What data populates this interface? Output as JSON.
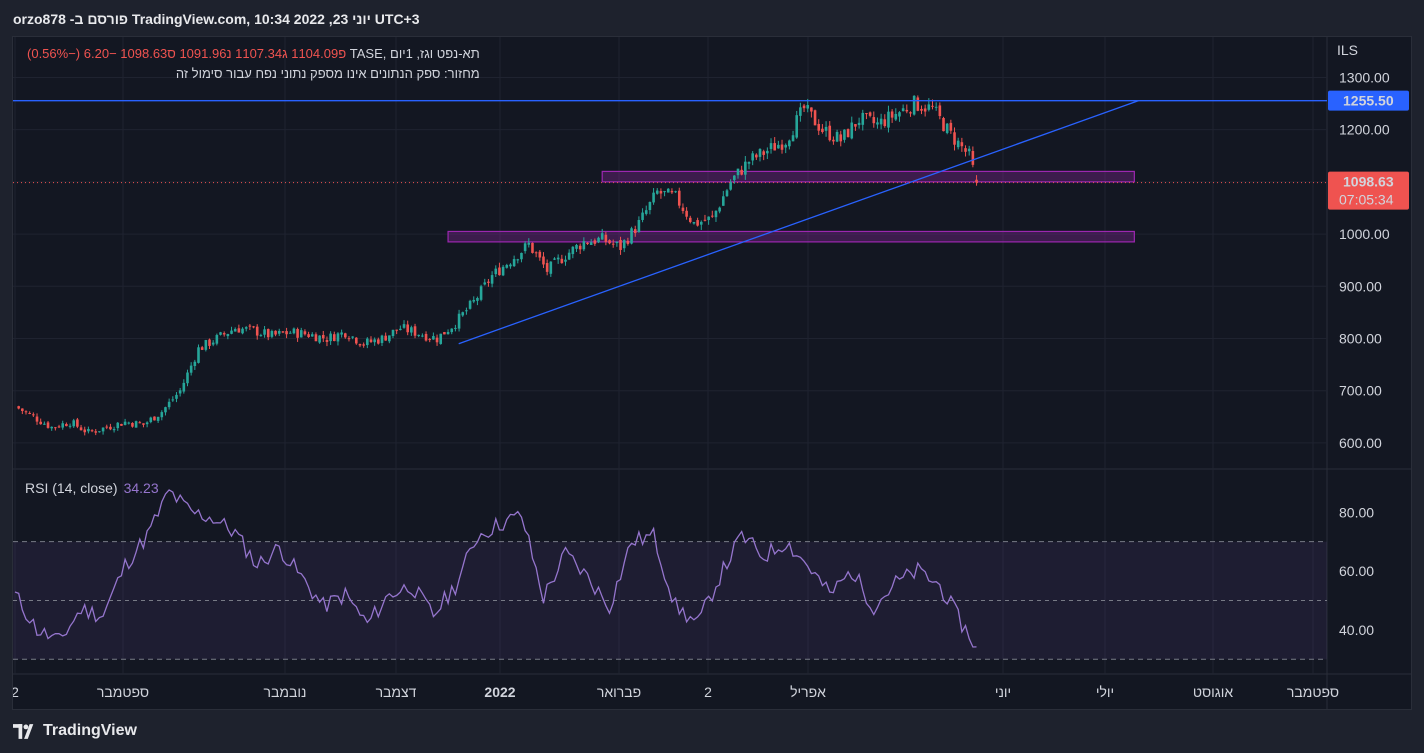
{
  "header": {
    "publisher": "orzo878 -פורסם ב TradingView.com, 10:34 2022 ,23 יוני UTC+3"
  },
  "legend": {
    "symbol": "תא-נפט וגז, 1יום ,TASE",
    "ohlc": "פ1104.09 ג1107.34 נ1091.96 ס1098.63 −6.20 (−0.56%)",
    "notice": "מחזור: ספק הנתונים אינו מספק נתוני נפח עבור סימול זה"
  },
  "rsi": {
    "label": "RSI (14, close)",
    "value": "34.23"
  },
  "price_axis": {
    "currency": "ILS",
    "h_line_label": "1255.50",
    "last_price": "1098.63",
    "countdown": "07:05:34"
  },
  "footer": {
    "brand": "TradingView"
  },
  "colors": {
    "up": "#26a69a",
    "down": "#ef5350",
    "rsi_line": "#9575cd",
    "trend_line": "#2962ff",
    "zone": "#9c27b0"
  },
  "chart_data": [
    {
      "type": "candlestick",
      "ylim": [
        550,
        1320
      ],
      "y_ticks": [
        "600.00",
        "700.00",
        "800.00",
        "900.00",
        "1000.00",
        "1100.00",
        "1200.00",
        "1300.00"
      ],
      "x_ticks": [
        "2",
        "ספטמבר",
        "נובמבר",
        "דצמבר",
        "2022",
        "פברואר",
        "2",
        "אפריל",
        "יוני",
        "יולי",
        "אוגוסט",
        "ספטמבר"
      ],
      "close_path": [
        [
          0,
          670
        ],
        [
          5,
          650
        ],
        [
          10,
          630
        ],
        [
          15,
          640
        ],
        [
          20,
          620
        ],
        [
          25,
          630
        ],
        [
          30,
          640
        ],
        [
          35,
          635
        ],
        [
          40,
          660
        ],
        [
          45,
          700
        ],
        [
          50,
          780
        ],
        [
          55,
          800
        ],
        [
          60,
          820
        ],
        [
          65,
          815
        ],
        [
          70,
          805
        ],
        [
          75,
          812
        ],
        [
          80,
          808
        ],
        [
          85,
          800
        ],
        [
          90,
          812
        ],
        [
          95,
          790
        ],
        [
          100,
          800
        ],
        [
          105,
          820
        ],
        [
          110,
          810
        ],
        [
          115,
          800
        ],
        [
          120,
          830
        ],
        [
          125,
          870
        ],
        [
          130,
          920
        ],
        [
          135,
          950
        ],
        [
          140,
          980
        ],
        [
          145,
          930
        ],
        [
          150,
          960
        ],
        [
          155,
          985
        ],
        [
          160,
          990
        ],
        [
          165,
          975
        ],
        [
          170,
          1020
        ],
        [
          175,
          1080
        ],
        [
          180,
          1070
        ],
        [
          185,
          1020
        ],
        [
          190,
          1030
        ],
        [
          195,
          1100
        ],
        [
          200,
          1140
        ],
        [
          205,
          1160
        ],
        [
          210,
          1180
        ],
        [
          215,
          1240
        ],
        [
          220,
          1200
        ],
        [
          225,
          1180
        ],
        [
          230,
          1220
        ],
        [
          235,
          1210
        ],
        [
          240,
          1230
        ],
        [
          245,
          1250
        ],
        [
          250,
          1240
        ],
        [
          255,
          1190
        ],
        [
          260,
          1150
        ],
        [
          262,
          1098.63
        ]
      ],
      "horizontal_line": 1255.5,
      "trend_line": {
        "from": [
          110,
          790
        ],
        "to": [
          283,
          1255.5
        ]
      },
      "zones": [
        {
          "from_day": 160,
          "to_day": 305,
          "low": 1100,
          "high": 1120
        },
        {
          "from_day": 118,
          "to_day": 305,
          "low": 985,
          "high": 1005
        }
      ],
      "last": 1098.63
    },
    {
      "type": "line",
      "title": "RSI (14, close)",
      "ylim": [
        25,
        92
      ],
      "y_ticks": [
        "40.00",
        "60.00",
        "80.00"
      ],
      "bands": [
        30,
        50,
        70
      ],
      "x": [
        0,
        6,
        12,
        18,
        24,
        30,
        36,
        42,
        48,
        54,
        60,
        66,
        72,
        78,
        84,
        90,
        96,
        102,
        108,
        114,
        120,
        126,
        132,
        138,
        144,
        150,
        156,
        162,
        168,
        174,
        180,
        186,
        192,
        198,
        204,
        210,
        216,
        222,
        228,
        234,
        240,
        246,
        252,
        258,
        262
      ],
      "values": [
        52,
        40,
        36,
        47,
        45,
        62,
        72,
        87,
        80,
        78,
        73,
        62,
        68,
        58,
        48,
        52,
        42,
        52,
        55,
        45,
        55,
        72,
        76,
        79,
        51,
        66,
        58,
        48,
        70,
        72,
        48,
        42,
        58,
        72,
        65,
        70,
        62,
        52,
        60,
        48,
        56,
        60,
        55,
        42,
        34.23
      ]
    }
  ]
}
